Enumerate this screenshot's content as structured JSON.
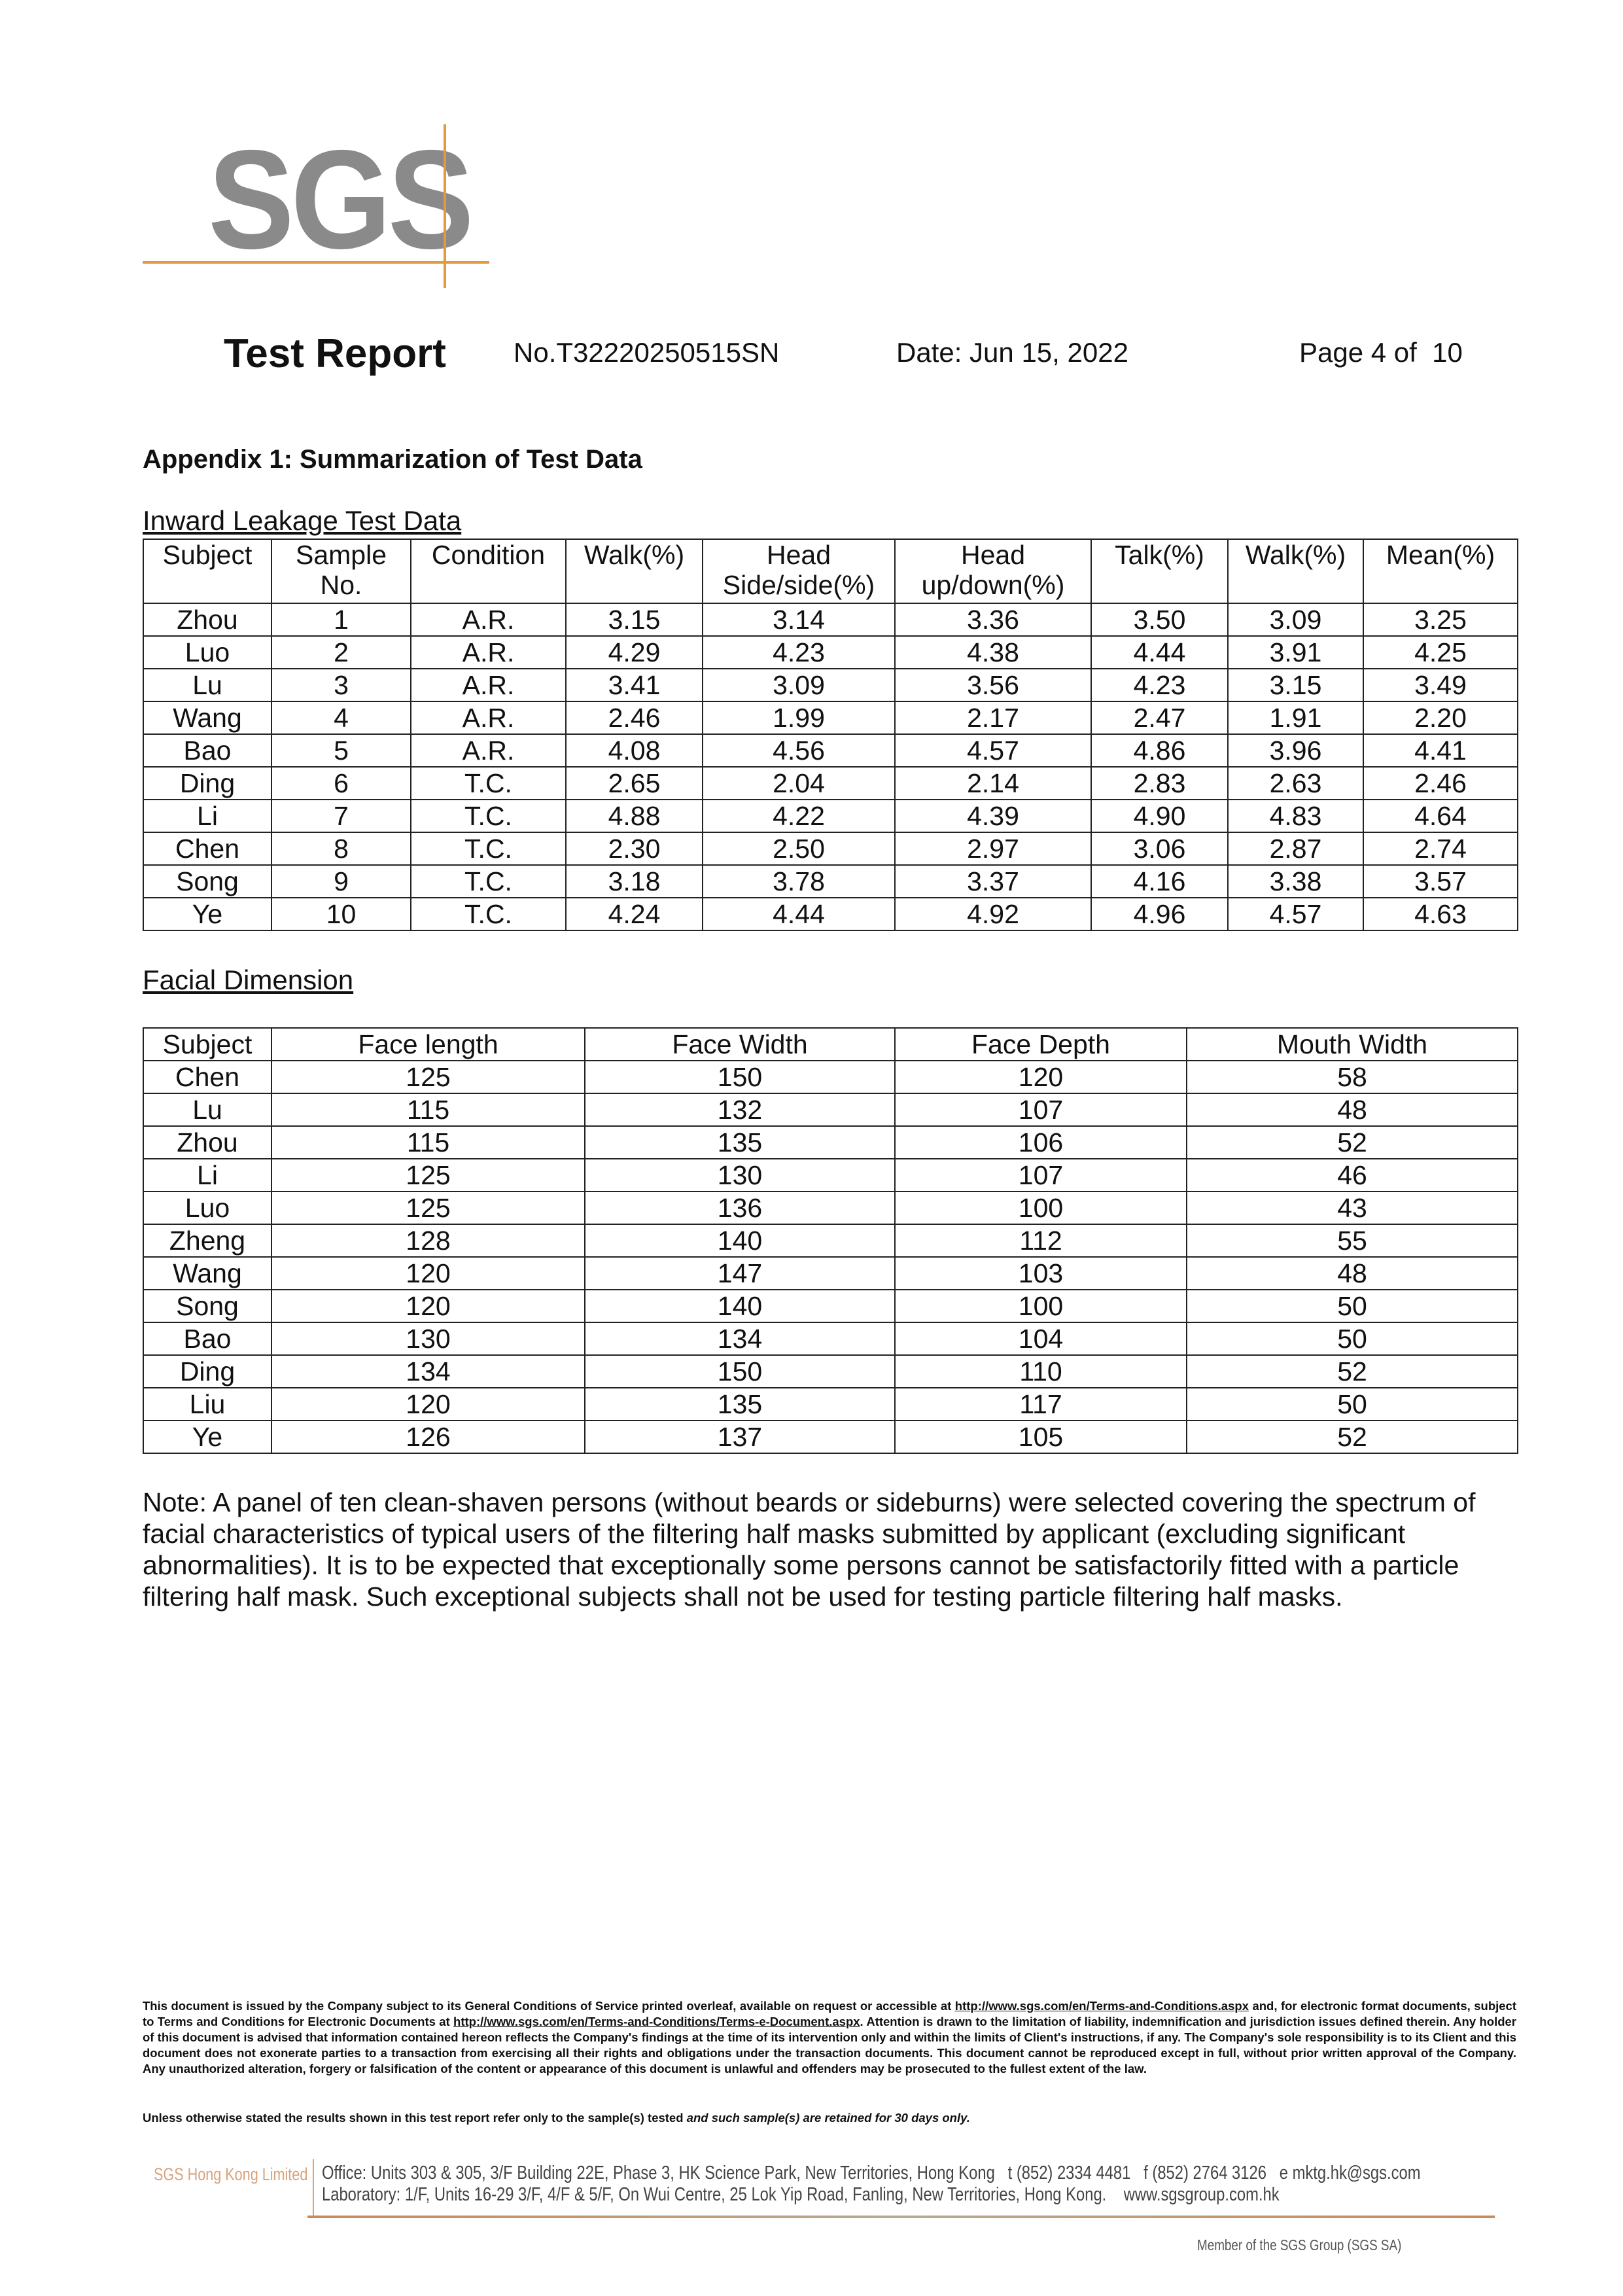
{
  "logo": {
    "text": "SGS",
    "color": "#8a8a8a",
    "accent": "#e39a3c"
  },
  "header": {
    "title": "Test Report",
    "number": "No.T32220250515SN",
    "date": "Date: Jun 15, 2022",
    "page": "Page 4 of  10"
  },
  "appendix_title": "Appendix 1: Summarization of Test Data",
  "inward": {
    "title": "Inward Leakage Test Data",
    "columns": [
      "Subject",
      "Sample No.",
      "Condition",
      "Walk(%)",
      "Head Side/side(%)",
      "Head up/down(%)",
      "Talk(%)",
      "Walk(%)",
      "Mean(%)"
    ],
    "rows": [
      [
        "Zhou",
        "1",
        "A.R.",
        "3.15",
        "3.14",
        "3.36",
        "3.50",
        "3.09",
        "3.25"
      ],
      [
        "Luo",
        "2",
        "A.R.",
        "4.29",
        "4.23",
        "4.38",
        "4.44",
        "3.91",
        "4.25"
      ],
      [
        "Lu",
        "3",
        "A.R.",
        "3.41",
        "3.09",
        "3.56",
        "4.23",
        "3.15",
        "3.49"
      ],
      [
        "Wang",
        "4",
        "A.R.",
        "2.46",
        "1.99",
        "2.17",
        "2.47",
        "1.91",
        "2.20"
      ],
      [
        "Bao",
        "5",
        "A.R.",
        "4.08",
        "4.56",
        "4.57",
        "4.86",
        "3.96",
        "4.41"
      ],
      [
        "Ding",
        "6",
        "T.C.",
        "2.65",
        "2.04",
        "2.14",
        "2.83",
        "2.63",
        "2.46"
      ],
      [
        "Li",
        "7",
        "T.C.",
        "4.88",
        "4.22",
        "4.39",
        "4.90",
        "4.83",
        "4.64"
      ],
      [
        "Chen",
        "8",
        "T.C.",
        "2.30",
        "2.50",
        "2.97",
        "3.06",
        "2.87",
        "2.74"
      ],
      [
        "Song",
        "9",
        "T.C.",
        "3.18",
        "3.78",
        "3.37",
        "4.16",
        "3.38",
        "3.57"
      ],
      [
        "Ye",
        "10",
        "T.C.",
        "4.24",
        "4.44",
        "4.92",
        "4.96",
        "4.57",
        "4.63"
      ]
    ]
  },
  "facial": {
    "title": "Facial Dimension",
    "columns": [
      "Subject",
      "Face length",
      "Face Width",
      "Face Depth",
      "Mouth Width"
    ],
    "rows": [
      [
        "Chen",
        "125",
        "150",
        "120",
        "58"
      ],
      [
        "Lu",
        "115",
        "132",
        "107",
        "48"
      ],
      [
        "Zhou",
        "115",
        "135",
        "106",
        "52"
      ],
      [
        "Li",
        "125",
        "130",
        "107",
        "46"
      ],
      [
        "Luo",
        "125",
        "136",
        "100",
        "43"
      ],
      [
        "Zheng",
        "128",
        "140",
        "112",
        "55"
      ],
      [
        "Wang",
        "120",
        "147",
        "103",
        "48"
      ],
      [
        "Song",
        "120",
        "140",
        "100",
        "50"
      ],
      [
        "Bao",
        "130",
        "134",
        "104",
        "50"
      ],
      [
        "Ding",
        "134",
        "150",
        "110",
        "52"
      ],
      [
        "Liu",
        "120",
        "135",
        "117",
        "50"
      ],
      [
        "Ye",
        "126",
        "137",
        "105",
        "52"
      ]
    ]
  },
  "note": "Note: A panel of ten clean-shaven persons (without beards or sideburns) were selected covering the spectrum of facial characteristics of typical users of the filtering half masks submitted by applicant (excluding significant abnormalities). It is to be expected that exceptionally some persons cannot be satisfactorily fitted with a particle filtering half mask. Such exceptional subjects shall not be used for testing particle filtering half masks.",
  "disclaimer": {
    "part1": "This document is issued by the Company subject to its General Conditions of Service printed overleaf, available on request or accessible at ",
    "link1": "http://www.sgs.com/en/Terms-and-Conditions.aspx",
    "part2": " and, for electronic format documents, subject to Terms and Conditions for Electronic Documents at ",
    "link2": "http://www.sgs.com/en/Terms-and-Conditions/Terms-e-Document.aspx",
    "part3": ". Attention is drawn to the limitation of liability, indemnification and jurisdiction issues defined therein. Any holder of this document is advised that information contained hereon reflects the Company's findings at the time of its intervention only and within the limits of Client's instructions, if any. The Company's sole responsibility is to its Client and this document does not exonerate parties to a transaction from exercising all their rights and obligations under the transaction documents. This document cannot be reproduced except in full, without prior written approval of the Company. Any unauthorized alteration, forgery or falsification of the content or appearance of this document is unlawful and offenders may be prosecuted to the fullest extent of the law.",
    "unless_plain": "Unless otherwise stated the results shown in this test report refer only to the sample(s) tested ",
    "unless_italic": "and such sample(s) are retained for 30 days only."
  },
  "footer": {
    "company": "SGS Hong Kong Limited",
    "office": "Office: Units 303 & 305, 3/F Building 22E, Phase 3, HK Science Park, New Territories, Hong Kong   t (852) 2334 4481   f (852) 2764 3126   e mktg.hk@sgs.com",
    "laboratory": "Laboratory: 1/F, Units 16-29 3/F, 4/F & 5/F, On Wui Centre, 25 Lok Yip Road, Fanling, New Territories, Hong Kong.    www.sgsgroup.com.hk",
    "member": "Member of the SGS Group (SGS SA)"
  }
}
